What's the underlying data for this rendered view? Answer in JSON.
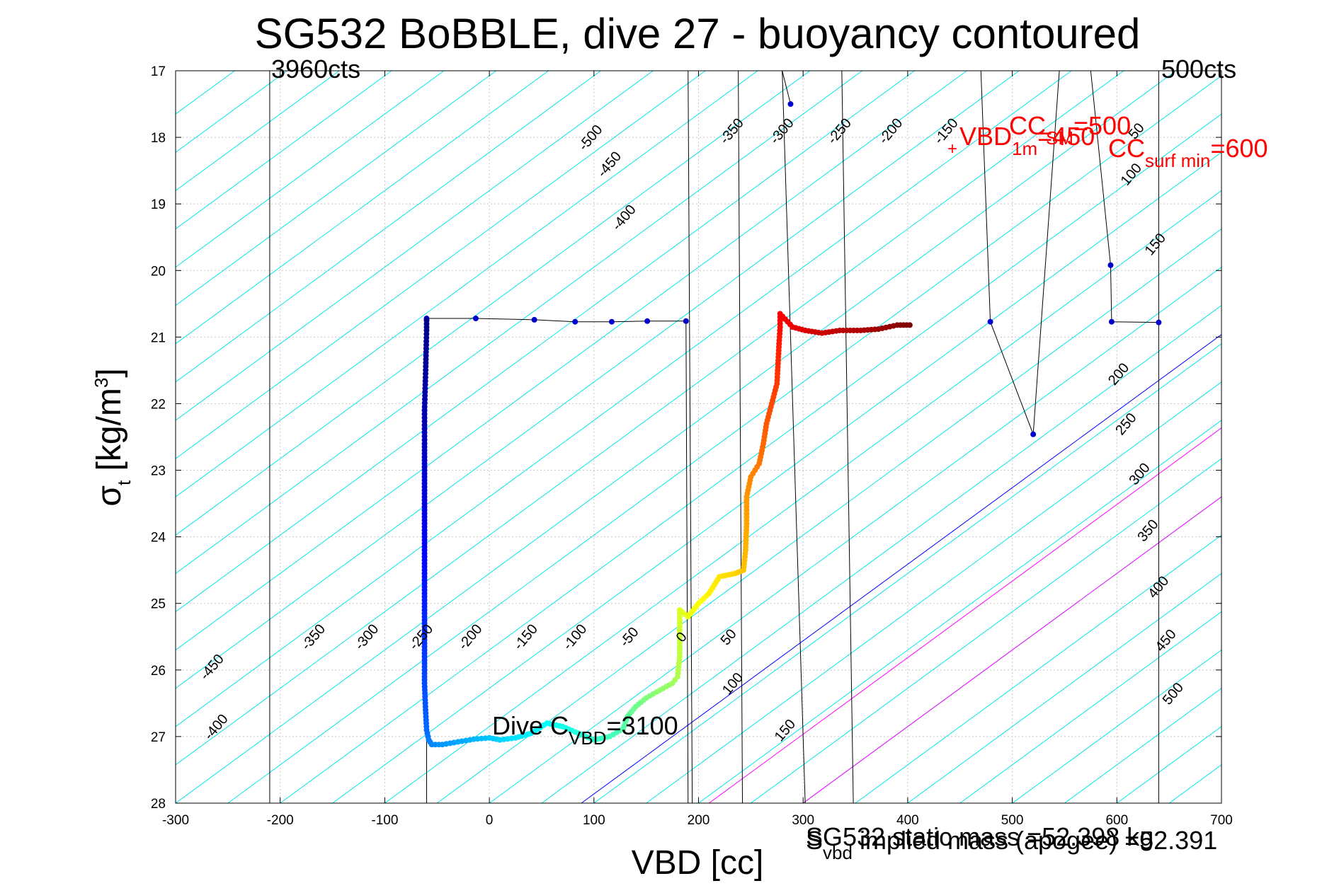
{
  "chart_data": {
    "type": "scatter",
    "title": "SG532 BoBBLE, dive 27 - buoyancy contoured",
    "xlabel": "VBD [cc]",
    "ylabel_main": "σ",
    "ylabel_sub": "t",
    "ylabel_unit": " [kg/m",
    "ylabel_sup": "3",
    "ylabel_close": "]",
    "xlim": [
      -300,
      700
    ],
    "ylim": [
      17,
      28
    ],
    "y_reversed": true,
    "grid": true,
    "xticks": [
      -300,
      -200,
      -100,
      0,
      100,
      200,
      300,
      400,
      500,
      600,
      700
    ],
    "yticks": [
      17,
      18,
      19,
      20,
      21,
      22,
      23,
      24,
      25,
      26,
      27,
      28
    ],
    "colors": {
      "contour": "#00e5ee",
      "neutral_line": "#0000ff",
      "magenta_lines": "#ff00ff",
      "vertical_lines": "#000000",
      "surface_points": "#0000cc",
      "annotation_red": "#ff0000"
    },
    "annotations": {
      "left_counts": "3960cts",
      "right_counts": "500cts",
      "dive_c_main": "Dive C",
      "dive_c_sub": "VBD",
      "dive_c_val": "=3100",
      "vbd_1m": "VBD",
      "vbd_1m_sub": "1m",
      "vbd_1m_val": "=450",
      "cc_sm": "CC",
      "cc_sm_sub": "SM",
      "cc_sm_val": "=500",
      "cc_surf": "CC",
      "cc_surf_sub": "surf min",
      "cc_surf_val": "=600",
      "mass_note_1": "SG532 static mass =52.398 kg",
      "mass_note_2_main": "S",
      "mass_note_2_sub": "vbd",
      "mass_note_2_rest": " implied mass (apogee) =52.391",
      "plus_marker": "+"
    },
    "contour_labels": [
      {
        "text": "-500",
        "x": 100,
        "y": 18.05
      },
      {
        "text": "-450",
        "x": 118,
        "y": 18.45
      },
      {
        "text": "-400",
        "x": 132,
        "y": 19.25
      },
      {
        "text": "-350",
        "x": 235,
        "y": 17.95
      },
      {
        "text": "-300",
        "x": 283,
        "y": 17.95
      },
      {
        "text": "-250",
        "x": 338,
        "y": 17.95
      },
      {
        "text": "-200",
        "x": 387,
        "y": 17.95
      },
      {
        "text": "-150",
        "x": 440,
        "y": 17.95
      },
      {
        "text": "50",
        "x": 622,
        "y": 17.95
      },
      {
        "text": "100",
        "x": 617,
        "y": 18.6
      },
      {
        "text": "150",
        "x": 640,
        "y": 19.65
      },
      {
        "text": "200",
        "x": 605,
        "y": 21.6
      },
      {
        "text": "250",
        "x": 612,
        "y": 22.35
      },
      {
        "text": "300",
        "x": 625,
        "y": 23.1
      },
      {
        "text": "350",
        "x": 633,
        "y": 23.95
      },
      {
        "text": "400",
        "x": 643,
        "y": 24.8
      },
      {
        "text": "450",
        "x": 650,
        "y": 25.6
      },
      {
        "text": "500",
        "x": 657,
        "y": 26.4
      },
      {
        "text": "-450",
        "x": -262,
        "y": 26.0
      },
      {
        "text": "-400",
        "x": -258,
        "y": 26.9
      },
      {
        "text": "-350",
        "x": -165,
        "y": 25.55
      },
      {
        "text": "-300",
        "x": -114,
        "y": 25.55
      },
      {
        "text": "-250",
        "x": -62,
        "y": 25.55
      },
      {
        "text": "-200",
        "x": -15,
        "y": 25.55
      },
      {
        "text": "-150",
        "x": 38,
        "y": 25.55
      },
      {
        "text": "-100",
        "x": 85,
        "y": 25.55
      },
      {
        "text": "-50",
        "x": 137,
        "y": 25.55
      },
      {
        "text": "0",
        "x": 187,
        "y": 25.55
      },
      {
        "text": "50",
        "x": 232,
        "y": 25.55
      },
      {
        "text": "100",
        "x": 236,
        "y": 26.25
      },
      {
        "text": "150",
        "x": 286,
        "y": 26.95
      }
    ],
    "vertical_lines": [
      {
        "x": [
          -210,
          -210
        ],
        "y": [
          17,
          28
        ]
      },
      {
        "x": [
          190,
          194
        ],
        "y": [
          17,
          28
        ]
      },
      {
        "x": [
          238,
          242
        ],
        "y": [
          17,
          28
        ]
      },
      {
        "x": [
          280,
          302
        ],
        "y": [
          17,
          28
        ]
      },
      {
        "x": [
          337,
          348
        ],
        "y": [
          17,
          28
        ]
      },
      {
        "x": [
          640,
          640
        ],
        "y": [
          17,
          28
        ]
      }
    ],
    "surface_polyline": {
      "x": [
        288,
        288
      ],
      "y": [
        17.45,
        17.5
      ]
    },
    "descent_top": {
      "x": [
        -60,
        -13,
        43,
        82,
        117,
        151,
        188,
        190
      ],
      "y": [
        20.72,
        20.72,
        20.74,
        20.77,
        20.77,
        20.76,
        20.76,
        28.0
      ]
    },
    "apogee_track": {
      "x": [
        470,
        479,
        520,
        545,
        575,
        594,
        595,
        640
      ],
      "y": [
        17.0,
        20.77,
        22.46,
        17.0,
        17.0,
        19.92,
        20.77,
        20.78
      ]
    },
    "series": [
      {
        "name": "",
        "color_scale": "jet",
        "points": [
          [
            -60,
            20.75
          ],
          [
            -60,
            20.9
          ],
          [
            -61,
            21.55
          ],
          [
            -62,
            22.1
          ],
          [
            -62,
            22.6
          ],
          [
            -62,
            23.0
          ],
          [
            -62,
            23.4
          ],
          [
            -62,
            23.8
          ],
          [
            -62,
            24.2
          ],
          [
            -62,
            24.6
          ],
          [
            -62,
            25.0
          ],
          [
            -62,
            25.4
          ],
          [
            -62,
            25.8
          ],
          [
            -62,
            26.2
          ],
          [
            -61,
            26.6
          ],
          [
            -60,
            26.9
          ],
          [
            -58,
            27.05
          ],
          [
            -55,
            27.12
          ],
          [
            -45,
            27.12
          ],
          [
            -30,
            27.08
          ],
          [
            -15,
            27.04
          ],
          [
            0,
            27.02
          ],
          [
            10,
            27.05
          ],
          [
            25,
            27.02
          ],
          [
            40,
            26.95
          ],
          [
            55,
            26.8
          ],
          [
            70,
            26.85
          ],
          [
            85,
            26.95
          ],
          [
            100,
            27.05
          ],
          [
            115,
            27.0
          ],
          [
            128,
            26.88
          ],
          [
            132,
            26.7
          ],
          [
            140,
            26.55
          ],
          [
            150,
            26.42
          ],
          [
            160,
            26.33
          ],
          [
            175,
            26.2
          ],
          [
            180,
            26.1
          ],
          [
            182,
            25.8
          ],
          [
            182,
            25.4
          ],
          [
            182,
            25.1
          ],
          [
            190,
            25.2
          ],
          [
            200,
            25.0
          ],
          [
            210,
            24.85
          ],
          [
            220,
            24.6
          ],
          [
            235,
            24.55
          ],
          [
            243,
            24.5
          ],
          [
            245,
            24.2
          ],
          [
            246,
            23.8
          ],
          [
            246,
            23.4
          ],
          [
            250,
            23.1
          ],
          [
            258,
            22.9
          ],
          [
            262,
            22.6
          ],
          [
            265,
            22.3
          ],
          [
            270,
            22.0
          ],
          [
            275,
            21.7
          ],
          [
            276,
            21.4
          ],
          [
            277,
            21.1
          ],
          [
            278,
            20.85
          ],
          [
            278,
            20.65
          ],
          [
            290,
            20.85
          ],
          [
            302,
            20.9
          ],
          [
            318,
            20.94
          ],
          [
            335,
            20.9
          ],
          [
            355,
            20.9
          ],
          [
            372,
            20.88
          ],
          [
            390,
            20.82
          ],
          [
            402,
            20.82
          ]
        ]
      }
    ]
  }
}
